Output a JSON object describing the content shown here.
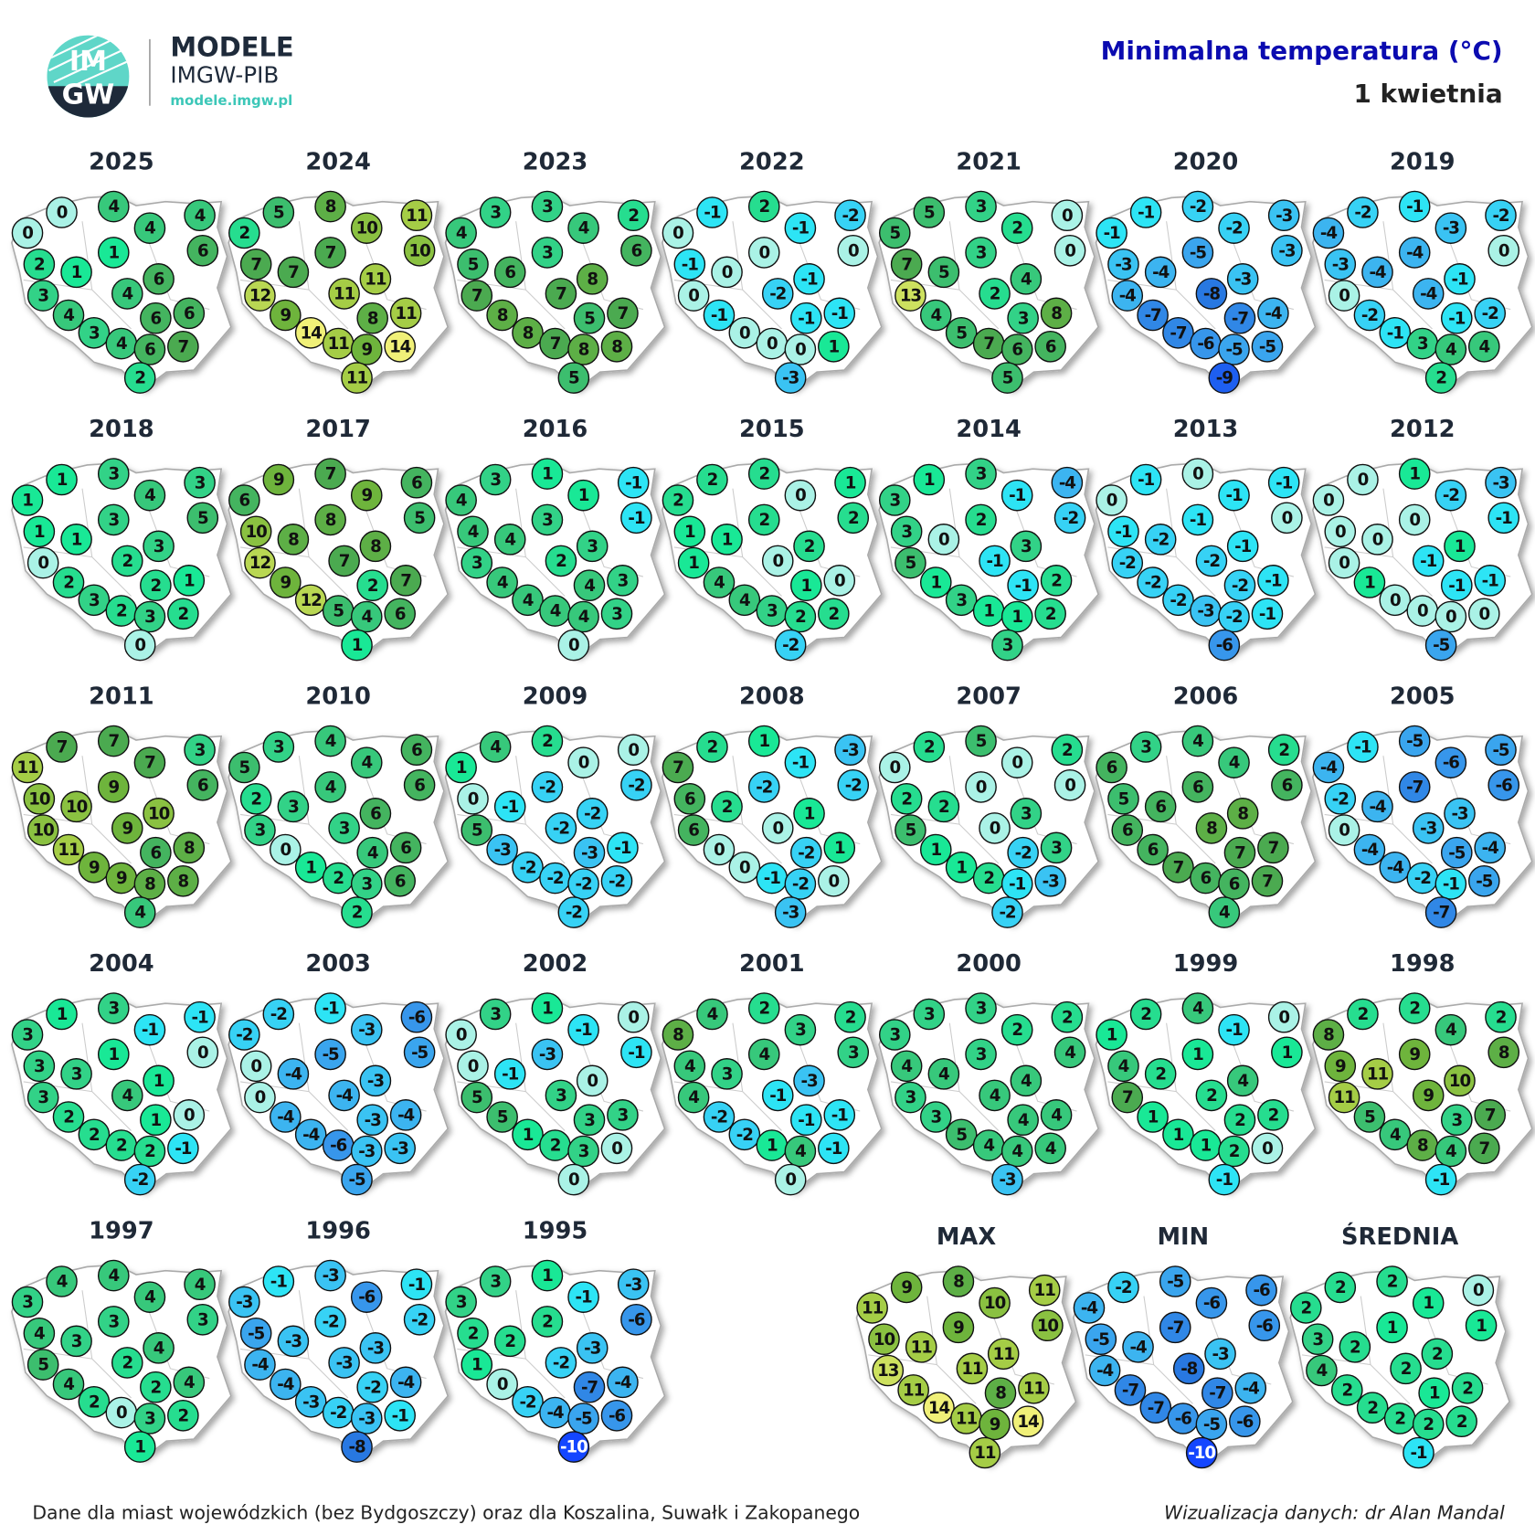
{
  "header": {
    "logo_top": "IM",
    "logo_bottom": "GW",
    "brand": "MODELE",
    "brand_sub": "IMGW-PIB",
    "url": "modele.imgw.pl",
    "title": "Minimalna temperatura (°C)",
    "subtitle": "1 kwietnia"
  },
  "maps": [
    {
      "title": "2025",
      "values": [
        0,
        4,
        4,
        4,
        0,
        6,
        1,
        2,
        1,
        6,
        3,
        4,
        6,
        6,
        4,
        3,
        4,
        6,
        7,
        2
      ]
    },
    {
      "title": "2024",
      "values": [
        5,
        8,
        10,
        11,
        2,
        10,
        7,
        7,
        7,
        11,
        12,
        11,
        8,
        11,
        9,
        14,
        11,
        9,
        14,
        11
      ]
    },
    {
      "title": "2023",
      "values": [
        3,
        3,
        4,
        2,
        4,
        6,
        3,
        5,
        6,
        8,
        7,
        7,
        5,
        7,
        8,
        8,
        7,
        8,
        8,
        5
      ]
    },
    {
      "title": "2022",
      "values": [
        -1,
        2,
        -1,
        -2,
        0,
        0,
        0,
        -1,
        0,
        -1,
        0,
        -2,
        -1,
        -1,
        -1,
        0,
        0,
        0,
        1,
        -3
      ]
    },
    {
      "title": "2021",
      "values": [
        5,
        3,
        2,
        0,
        5,
        0,
        3,
        7,
        5,
        4,
        13,
        2,
        3,
        8,
        4,
        5,
        7,
        6,
        6,
        5
      ]
    },
    {
      "title": "2020",
      "values": [
        -1,
        -2,
        -2,
        -3,
        -1,
        -3,
        -5,
        -3,
        -4,
        -3,
        -4,
        -8,
        -7,
        -4,
        -7,
        -7,
        -6,
        -5,
        -5,
        -9
      ]
    },
    {
      "title": "2019",
      "values": [
        -2,
        -1,
        -3,
        -2,
        -4,
        0,
        -4,
        -3,
        -4,
        -1,
        0,
        -4,
        -1,
        -2,
        -2,
        -1,
        3,
        4,
        4,
        2
      ]
    },
    {
      "title": "2018",
      "values": [
        1,
        3,
        4,
        3,
        1,
        5,
        3,
        1,
        1,
        3,
        0,
        2,
        2,
        1,
        2,
        3,
        2,
        3,
        2,
        0
      ]
    },
    {
      "title": "2017",
      "values": [
        9,
        7,
        9,
        6,
        6,
        5,
        8,
        10,
        8,
        8,
        12,
        7,
        2,
        7,
        9,
        12,
        5,
        4,
        6,
        1
      ]
    },
    {
      "title": "2016",
      "values": [
        3,
        1,
        1,
        -1,
        4,
        -1,
        3,
        4,
        4,
        3,
        3,
        2,
        4,
        3,
        4,
        4,
        4,
        4,
        3,
        0
      ]
    },
    {
      "title": "2015",
      "values": [
        2,
        2,
        0,
        1,
        2,
        2,
        2,
        1,
        1,
        2,
        1,
        0,
        1,
        0,
        4,
        4,
        3,
        2,
        2,
        -2
      ]
    },
    {
      "title": "2014",
      "values": [
        1,
        3,
        -1,
        -4,
        3,
        -2,
        2,
        3,
        0,
        3,
        5,
        -1,
        -1,
        2,
        1,
        3,
        1,
        1,
        2,
        3
      ]
    },
    {
      "title": "2013",
      "values": [
        -1,
        0,
        -1,
        -1,
        0,
        0,
        -1,
        -1,
        -2,
        -1,
        -2,
        -2,
        -2,
        -1,
        -2,
        -2,
        -3,
        -2,
        -1,
        -6
      ]
    },
    {
      "title": "2012",
      "values": [
        0,
        1,
        -2,
        -3,
        0,
        -1,
        0,
        0,
        0,
        1,
        0,
        -1,
        -1,
        -1,
        1,
        0,
        0,
        0,
        0,
        -5
      ]
    },
    {
      "title": "2011",
      "values": [
        7,
        7,
        7,
        3,
        11,
        6,
        9,
        10,
        10,
        10,
        10,
        9,
        6,
        8,
        11,
        9,
        9,
        8,
        8,
        4
      ]
    },
    {
      "title": "2010",
      "values": [
        3,
        4,
        4,
        6,
        5,
        6,
        4,
        2,
        3,
        6,
        3,
        3,
        4,
        6,
        0,
        1,
        2,
        3,
        6,
        2
      ]
    },
    {
      "title": "2009",
      "values": [
        4,
        2,
        0,
        0,
        1,
        -2,
        -2,
        0,
        -1,
        -2,
        5,
        -2,
        -3,
        -1,
        -3,
        -2,
        -2,
        -2,
        -2,
        -2
      ]
    },
    {
      "title": "2008",
      "values": [
        2,
        1,
        -1,
        -3,
        7,
        -2,
        -2,
        6,
        2,
        1,
        6,
        0,
        -2,
        1,
        0,
        0,
        -1,
        -2,
        0,
        -3
      ]
    },
    {
      "title": "2007",
      "values": [
        2,
        5,
        0,
        2,
        0,
        0,
        0,
        2,
        2,
        3,
        5,
        0,
        -2,
        3,
        1,
        1,
        2,
        -1,
        -3,
        -2
      ]
    },
    {
      "title": "2006",
      "values": [
        3,
        4,
        4,
        2,
        6,
        6,
        6,
        5,
        6,
        8,
        6,
        8,
        7,
        7,
        6,
        7,
        6,
        6,
        7,
        4
      ]
    },
    {
      "title": "2005",
      "values": [
        -1,
        -5,
        -6,
        -5,
        -4,
        -6,
        -7,
        -2,
        -4,
        -3,
        0,
        -3,
        -5,
        -4,
        -4,
        -4,
        -2,
        -1,
        -5,
        -7
      ]
    },
    {
      "title": "2004",
      "values": [
        1,
        3,
        -1,
        -1,
        3,
        0,
        1,
        3,
        3,
        1,
        3,
        4,
        1,
        0,
        2,
        2,
        2,
        2,
        -1,
        -2
      ]
    },
    {
      "title": "2003",
      "values": [
        -2,
        -1,
        -3,
        -6,
        -2,
        -5,
        -5,
        0,
        -4,
        -3,
        0,
        -4,
        -3,
        -4,
        -4,
        -4,
        -6,
        -3,
        -3,
        -5
      ]
    },
    {
      "title": "2002",
      "values": [
        3,
        1,
        -1,
        0,
        0,
        -1,
        -3,
        0,
        -1,
        0,
        5,
        3,
        3,
        3,
        5,
        1,
        2,
        3,
        0,
        0
      ]
    },
    {
      "title": "2001",
      "values": [
        4,
        2,
        3,
        2,
        8,
        3,
        4,
        4,
        3,
        -3,
        4,
        -1,
        -1,
        -1,
        -2,
        -2,
        1,
        4,
        -1,
        0
      ]
    },
    {
      "title": "2000",
      "values": [
        3,
        3,
        2,
        2,
        3,
        4,
        3,
        4,
        4,
        4,
        3,
        4,
        4,
        4,
        3,
        5,
        4,
        4,
        4,
        -3
      ]
    },
    {
      "title": "1999",
      "values": [
        2,
        4,
        -1,
        0,
        1,
        1,
        1,
        4,
        2,
        4,
        7,
        2,
        2,
        2,
        1,
        1,
        1,
        2,
        0,
        -1
      ]
    },
    {
      "title": "1998",
      "values": [
        2,
        2,
        4,
        2,
        8,
        8,
        9,
        9,
        11,
        10,
        11,
        9,
        3,
        7,
        5,
        4,
        8,
        4,
        7,
        -1
      ]
    },
    {
      "title": "1997",
      "values": [
        4,
        4,
        4,
        4,
        3,
        3,
        3,
        4,
        3,
        4,
        5,
        2,
        2,
        4,
        4,
        2,
        0,
        3,
        2,
        1
      ]
    },
    {
      "title": "1996",
      "values": [
        -1,
        -3,
        -6,
        -1,
        -3,
        -2,
        -2,
        -5,
        -3,
        -3,
        -4,
        -3,
        -2,
        -4,
        -4,
        -3,
        -2,
        -3,
        -1,
        -8
      ]
    },
    {
      "title": "1995",
      "values": [
        3,
        1,
        -1,
        -3,
        3,
        -6,
        2,
        2,
        2,
        -3,
        1,
        -2,
        -7,
        -4,
        0,
        -2,
        -4,
        -5,
        -6,
        -10
      ]
    }
  ],
  "summary": [
    {
      "title": "MAX",
      "values": [
        9,
        8,
        10,
        11,
        11,
        10,
        9,
        10,
        11,
        11,
        13,
        11,
        8,
        11,
        11,
        14,
        11,
        9,
        14,
        11
      ]
    },
    {
      "title": "MIN",
      "values": [
        -2,
        -5,
        -6,
        -6,
        -4,
        -6,
        -7,
        -5,
        -4,
        -3,
        -4,
        -8,
        -7,
        -4,
        -7,
        -7,
        -6,
        -5,
        -6,
        -10
      ]
    },
    {
      "title": "ŚREDNIA",
      "values": [
        2,
        2,
        1,
        0,
        2,
        1,
        1,
        3,
        2,
        2,
        4,
        2,
        1,
        2,
        2,
        2,
        2,
        2,
        2,
        -1
      ]
    }
  ],
  "footer": {
    "left": "Dane dla miast wojewódzkich (bez Bydgoszczy) oraz dla Koszalina, Suwałk i Zakopanego",
    "right": "Wizualizacja danych: dr Alan Mandal"
  }
}
